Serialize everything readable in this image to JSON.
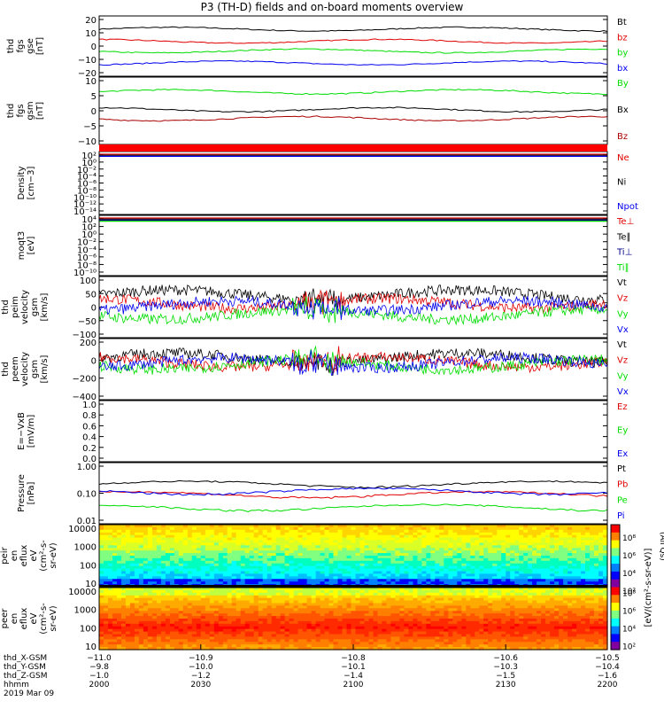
{
  "title": "P3 (TH-D) fields and on-board moments overview",
  "colors": {
    "black": "#000000",
    "red": "#e00000",
    "green": "#00dd00",
    "blue": "#0000ee",
    "darkred": "#aa0000",
    "navy": "#000088"
  },
  "chart_data": [
    {
      "type": "line",
      "panel": "fgs_gse",
      "ylabel": [
        "thd",
        "fgs",
        "gse",
        "[nT]"
      ],
      "yticks": [
        "20",
        "10",
        "0",
        "−10",
        "−20"
      ],
      "ylim": [
        -22,
        22
      ],
      "series": [
        {
          "name": "Bt",
          "color": "#000000",
          "level": 14
        },
        {
          "name": "bz",
          "color": "#e00000",
          "level": 4
        },
        {
          "name": "by",
          "color": "#00dd00",
          "level": -4
        },
        {
          "name": "bx",
          "color": "#0000ee",
          "level": -14
        }
      ]
    },
    {
      "type": "line",
      "panel": "fgs_gsm",
      "ylabel": [
        "thd",
        "fgs",
        "gsm",
        "[nT]"
      ],
      "yticks": [
        "10",
        "5",
        "0",
        "−5",
        "−10"
      ],
      "ylim": [
        -16,
        11
      ],
      "series": [
        {
          "name": "By",
          "color": "#00dd00",
          "level": 6
        },
        {
          "name": "Bx",
          "color": "#000000",
          "level": -2
        },
        {
          "name": "Bz",
          "color": "#aa0000",
          "level": -6
        }
      ]
    },
    {
      "type": "line",
      "panel": "density",
      "ylabel": [
        "Density",
        "[cm−3]"
      ],
      "yticks": [
        "10²",
        "10⁰",
        "10⁻²",
        "10⁻⁴",
        "10⁻⁶",
        "10⁻⁸",
        "10⁻¹⁰",
        "10⁻¹²",
        "10⁻¹⁴"
      ],
      "series": [
        {
          "name": "Ne",
          "color": "#e00000"
        },
        {
          "name": "Ni",
          "color": "#000000"
        },
        {
          "name": "Npot",
          "color": "#0000ee"
        }
      ]
    },
    {
      "type": "line",
      "panel": "temperature",
      "ylabel": [
        "moqt3",
        "[eV]"
      ],
      "yticks": [
        "10⁴",
        "10²",
        "10⁰",
        "10⁻²",
        "10⁻⁴",
        "10⁻⁶",
        "10⁻⁸",
        "10⁻¹⁰"
      ],
      "series": [
        {
          "name": "Te⊥",
          "color": "#e00000"
        },
        {
          "name": "Te∥",
          "color": "#000000"
        },
        {
          "name": "Ti⊥",
          "color": "#000088"
        },
        {
          "name": "Ti∥",
          "color": "#00dd00"
        }
      ]
    },
    {
      "type": "line",
      "panel": "peim_velocity",
      "ylabel": [
        "thd",
        "peim",
        "velocity",
        "gsm",
        "[km/s]"
      ],
      "yticks": [
        "100",
        "50",
        "0",
        "−50",
        "−100"
      ],
      "ylim": [
        -110,
        110
      ],
      "series": [
        {
          "name": "Vt",
          "color": "#000000",
          "level": 50
        },
        {
          "name": "Vz",
          "color": "#e00000",
          "level": 15
        },
        {
          "name": "Vy",
          "color": "#00dd00",
          "level": -30
        },
        {
          "name": "Vx",
          "color": "#0000ee",
          "level": 5
        }
      ]
    },
    {
      "type": "line",
      "panel": "peem_velocity",
      "ylabel": [
        "thd",
        "peem",
        "velocity",
        "gsm",
        "[km/s]"
      ],
      "yticks": [
        "200",
        "0",
        "−200",
        "−400"
      ],
      "ylim": [
        -400,
        250
      ],
      "series": [
        {
          "name": "Vt",
          "color": "#000000",
          "level": 60
        },
        {
          "name": "Vz",
          "color": "#e00000",
          "level": 10
        },
        {
          "name": "Vy",
          "color": "#00dd00",
          "level": -20
        },
        {
          "name": "Vx",
          "color": "#0000ee",
          "level": 0
        }
      ]
    },
    {
      "type": "line",
      "panel": "efield",
      "ylabel": [
        "E=−VxB",
        "[mV/m]"
      ],
      "yticks": [
        "1.0",
        "0.8",
        "0.6",
        "0.4",
        "0.2",
        "0.0"
      ],
      "ylim": [
        0,
        1
      ],
      "series": [
        {
          "name": "Ez",
          "color": "#e00000"
        },
        {
          "name": "Ey",
          "color": "#00dd00"
        },
        {
          "name": "Ex",
          "color": "#0000ee"
        }
      ]
    },
    {
      "type": "line",
      "panel": "pressure",
      "ylabel": [
        "Pressure",
        "[nPa]"
      ],
      "yticks": [
        "1.00",
        "0.10",
        "0.01"
      ],
      "ylim": [
        0.01,
        1
      ],
      "series": [
        {
          "name": "Pt",
          "color": "#000000",
          "level": 0.22
        },
        {
          "name": "Pb",
          "color": "#e00000",
          "level": 0.09
        },
        {
          "name": "Pe",
          "color": "#00dd00",
          "level": 0.03
        },
        {
          "name": "Pi",
          "color": "#0000ee",
          "level": 0.12
        }
      ]
    },
    {
      "type": "heatmap",
      "panel": "peir_spectrogram",
      "ylabel": [
        "thd",
        "peir",
        "en",
        "eflux",
        "eV",
        "(cm²-s-",
        "sr-eV)"
      ],
      "yticks": [
        "10000",
        "1000",
        "100",
        "10"
      ],
      "ylim": [
        5,
        20000
      ]
    },
    {
      "type": "heatmap",
      "panel": "peer_spectrogram",
      "ylabel": [
        "thd",
        "peer",
        "en",
        "eflux",
        "eV",
        "(cm²-s-",
        "sr-eV)"
      ],
      "yticks": [
        "10000",
        "1000",
        "100",
        "10"
      ],
      "ylim": [
        5,
        20000
      ]
    }
  ],
  "colorbar": {
    "ticks_top": [
      "10⁸",
      "10⁶",
      "10⁴",
      "10²"
    ],
    "ticks_bottom": [
      "10⁸",
      "10⁶",
      "10⁴",
      "10²"
    ],
    "label": "[eV/(cm²-s-sr-eV)]",
    "side_label": "(All Qs)"
  },
  "xaxis": {
    "rows": [
      {
        "label": "thd_X-GSM",
        "values": [
          "−11.0",
          "−10.9",
          "−10.8",
          "−10.6",
          "−10.5"
        ]
      },
      {
        "label": "thd_Y-GSM",
        "values": [
          "−9.8",
          "−10.0",
          "−10.1",
          "−10.3",
          "−10.4"
        ]
      },
      {
        "label": "thd_Z-GSM",
        "values": [
          "−1.0",
          "−1.2",
          "−1.4",
          "−1.5",
          "−1.6"
        ]
      },
      {
        "label": "hhmm",
        "values": [
          "2000",
          "2030",
          "2100",
          "2130",
          "2200"
        ]
      }
    ],
    "date": "2019 Mar 09"
  }
}
